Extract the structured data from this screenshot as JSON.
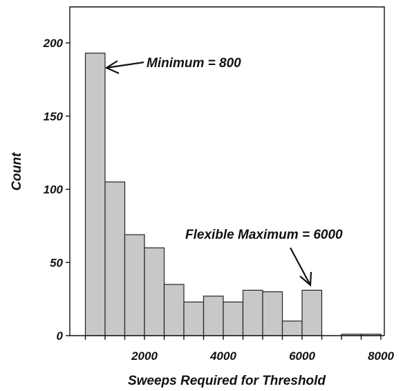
{
  "chart_data": {
    "type": "bar",
    "xlabel": "Sweeps Required for Threshold",
    "ylabel": "Count",
    "xlim": [
      0,
      8000
    ],
    "ylim": [
      0,
      220
    ],
    "x_ticks": [
      2000,
      4000,
      6000,
      8000
    ],
    "y_ticks": [
      0,
      50,
      100,
      150,
      200
    ],
    "bin_width": 500,
    "bins": [
      {
        "start": 500,
        "end": 1000,
        "value": 193
      },
      {
        "start": 1000,
        "end": 1500,
        "value": 105
      },
      {
        "start": 1500,
        "end": 2000,
        "value": 69
      },
      {
        "start": 2000,
        "end": 2500,
        "value": 60
      },
      {
        "start": 2500,
        "end": 3000,
        "value": 35
      },
      {
        "start": 3000,
        "end": 3500,
        "value": 23
      },
      {
        "start": 3500,
        "end": 4000,
        "value": 27
      },
      {
        "start": 4000,
        "end": 4500,
        "value": 23
      },
      {
        "start": 4500,
        "end": 5000,
        "value": 31
      },
      {
        "start": 5000,
        "end": 5500,
        "value": 30
      },
      {
        "start": 5500,
        "end": 6000,
        "value": 10
      },
      {
        "start": 6000,
        "end": 6500,
        "value": 31
      },
      {
        "start": 6500,
        "end": 7000,
        "value": 0
      },
      {
        "start": 7000,
        "end": 7500,
        "value": 1
      },
      {
        "start": 7500,
        "end": 8000,
        "value": 1
      }
    ],
    "annotations": [
      {
        "text": "Minimum = 800",
        "x": 1000,
        "y": 193
      },
      {
        "text": "Flexible Maximum = 6000",
        "x": 6250,
        "y": 34
      }
    ],
    "grid": false,
    "legend": "none",
    "colors": {
      "bar_fill": "#c8c8c8",
      "bar_stroke": "#222222"
    }
  }
}
